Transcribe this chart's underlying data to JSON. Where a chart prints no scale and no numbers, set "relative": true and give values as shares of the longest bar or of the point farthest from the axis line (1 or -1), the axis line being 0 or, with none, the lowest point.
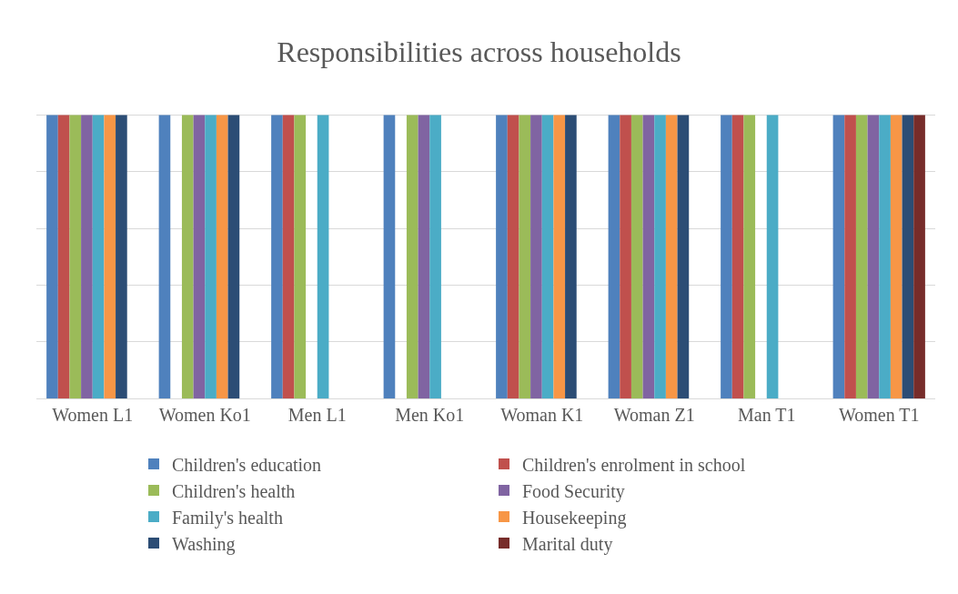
{
  "chart_data": {
    "type": "bar",
    "title": "Responsibilities across households",
    "relative": true,
    "grid": "y",
    "legend": "bottom",
    "categories": [
      "Women L1",
      "Women Ko1",
      "Men L1",
      "Men Ko1",
      "Woman K1",
      "Woman Z1",
      "Man T1",
      "Women T1"
    ],
    "series": [
      {
        "name": "Children's education",
        "color": "#4f81bd",
        "values": [
          1,
          1,
          1,
          1,
          1,
          1,
          1,
          1
        ]
      },
      {
        "name": "Children's enrolment in school",
        "color": "#c0504d",
        "values": [
          1,
          null,
          1,
          null,
          1,
          1,
          1,
          1
        ]
      },
      {
        "name": "Children's health",
        "color": "#9bbb59",
        "values": [
          1,
          1,
          1,
          1,
          1,
          1,
          1,
          1
        ]
      },
      {
        "name": "Food Security",
        "color": "#8064a2",
        "values": [
          1,
          1,
          null,
          1,
          1,
          1,
          null,
          1
        ]
      },
      {
        "name": "Family's health",
        "color": "#4bacc6",
        "values": [
          1,
          1,
          1,
          1,
          1,
          1,
          1,
          1
        ]
      },
      {
        "name": "Housekeeping",
        "color": "#f79646",
        "values": [
          1,
          1,
          null,
          null,
          1,
          1,
          null,
          1
        ]
      },
      {
        "name": "Washing",
        "color": "#2c4d75",
        "values": [
          1,
          1,
          null,
          null,
          1,
          1,
          null,
          1
        ]
      },
      {
        "name": "Marital duty",
        "color": "#772c2a",
        "values": [
          null,
          null,
          null,
          null,
          null,
          null,
          null,
          1
        ]
      }
    ]
  }
}
